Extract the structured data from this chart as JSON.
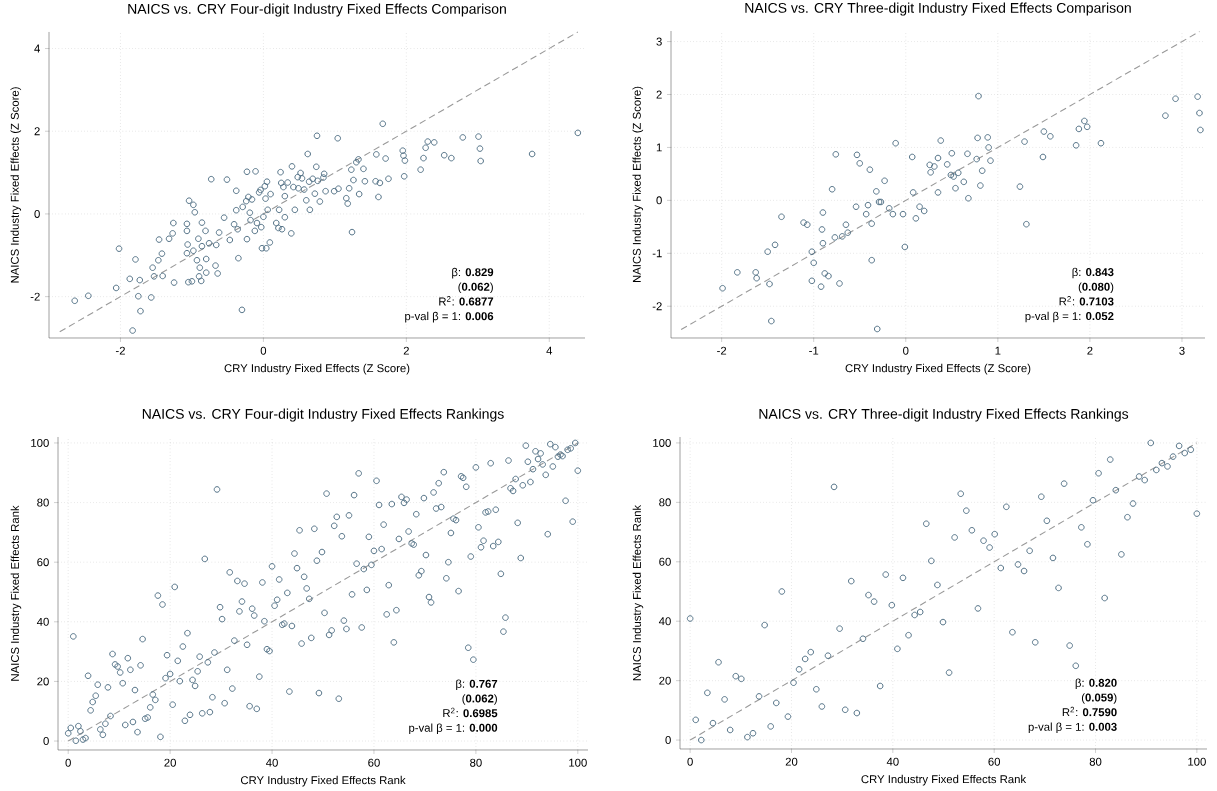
{
  "chart_data": [
    {
      "type": "scatter",
      "title": "NAICS vs. CRY Four-digit Industry Fixed Effects Comparison",
      "xlabel": "CRY Industry Fixed Effects (Z Score)",
      "ylabel": "NAICS Industry Fixed Effects (Z Score)",
      "xlim": [
        -3,
        4.5
      ],
      "ylim": [
        -3,
        4.4
      ],
      "xticks": [
        -2,
        0,
        2,
        4
      ],
      "yticks": [
        -2,
        0,
        2,
        4
      ],
      "grid": true,
      "annotations": [
        "β: **0.829**",
        "(**0.062**)",
        "R$^{2}$:  **0.6877**",
        "p-val β = 1:  **0.006**"
      ],
      "series": [
        {
          "marker": "circle",
          "color": "#4a6a80",
          "x": [
            -2.64,
            -2.45,
            -2.06,
            -2.02,
            -1.87,
            -1.79,
            -1.83,
            -1.73,
            -1.75,
            -1.72,
            -1.57,
            -1.55,
            -1.53,
            -1.46,
            -1.47,
            -1.42,
            -1.41,
            -1.32,
            -1.27,
            -1.26,
            -1.25,
            -1.07,
            -1.07,
            -1.06,
            -1.07,
            -1.05,
            -1.04,
            -1.0,
            -0.98,
            -0.98,
            -0.96,
            -0.93,
            -0.9,
            -0.91,
            -0.89,
            -0.87,
            -0.86,
            -0.86,
            -0.81,
            -0.8,
            -0.8,
            -0.76,
            -0.73,
            -0.67,
            -0.66,
            -0.64,
            -0.62,
            -0.55,
            -0.51,
            -0.47,
            -0.41,
            -0.38,
            -0.38,
            -0.36,
            -0.35,
            -0.3,
            -0.29,
            -0.23,
            -0.24,
            -0.23,
            -0.21,
            -0.19,
            -0.18,
            -0.16,
            -0.11,
            -0.12,
            -0.09,
            -0.06,
            -0.04,
            -0.03,
            -0.02,
            0.0,
            0.02,
            0.03,
            0.04,
            0.05,
            0.06,
            0.09,
            0.1,
            0.18,
            0.21,
            0.22,
            0.24,
            0.25,
            0.26,
            0.28,
            0.3,
            0.3,
            0.34,
            0.4,
            0.39,
            0.42,
            0.44,
            0.48,
            0.49,
            0.52,
            0.54,
            0.57,
            0.6,
            0.62,
            0.64,
            0.65,
            0.69,
            0.72,
            0.74,
            0.75,
            0.76,
            0.79,
            0.84,
            0.85,
            0.87,
            0.99,
            1.04,
            1.05,
            1.16,
            1.18,
            1.2,
            1.23,
            1.24,
            1.26,
            1.3,
            1.33,
            1.34,
            1.4,
            1.42,
            1.58,
            1.57,
            1.61,
            1.63,
            1.67,
            1.71,
            1.75,
            1.95,
            1.96,
            1.98,
            1.97,
            2.2,
            2.24,
            2.27,
            2.3,
            2.39,
            2.53,
            2.63,
            2.79,
            3.01,
            3.03,
            3.04,
            3.76,
            4.4
          ],
          "values": [
            -2.1,
            -1.98,
            -1.79,
            -0.84,
            -1.57,
            -1.1,
            -2.82,
            -1.6,
            -1.99,
            -2.35,
            -2.02,
            -1.3,
            -1.51,
            -0.62,
            -1.12,
            -0.96,
            -1.5,
            -0.6,
            -0.47,
            -0.22,
            -1.66,
            -0.24,
            -0.41,
            -0.74,
            -0.95,
            -1.65,
            0.32,
            -1.63,
            -0.89,
            0.22,
            0.04,
            -1.12,
            -1.51,
            -0.6,
            -1.3,
            -1.62,
            -0.21,
            -0.78,
            -0.41,
            -1.09,
            -1.42,
            -0.71,
            0.84,
            -1.25,
            -0.75,
            -1.44,
            -0.45,
            -0.09,
            0.83,
            -0.63,
            -0.25,
            0.09,
            0.56,
            -0.37,
            -1.07,
            -2.32,
            0.17,
            1.02,
            0.31,
            -0.61,
            0.41,
            0.03,
            -0.15,
            0.35,
            1.03,
            -0.41,
            -0.22,
            0.52,
            0.58,
            -0.32,
            -0.83,
            -0.07,
            0.67,
            0.37,
            -0.83,
            0.78,
            0.1,
            -0.69,
            0.48,
            -0.22,
            -0.34,
            0.1,
            1.01,
            0.75,
            -0.37,
            0.65,
            -0.08,
            0.43,
            0.76,
            1.15,
            -0.47,
            0.65,
            0.1,
            0.89,
            0.62,
            0.99,
            0.86,
            0.59,
            0.33,
            1.45,
            0.78,
            0.1,
            0.85,
            0.49,
            1.14,
            1.89,
            0.8,
            0.3,
            0.88,
            0.97,
            0.55,
            0.55,
            1.83,
            0.61,
            0.38,
            0.25,
            0.62,
            1.07,
            -0.44,
            0.82,
            1.25,
            1.32,
            0.48,
            1.09,
            0.79,
            1.44,
            0.79,
            0.41,
            0.75,
            2.18,
            1.34,
            0.85,
            1.53,
            1.41,
            1.29,
            0.91,
            1.07,
            1.35,
            1.6,
            1.75,
            1.73,
            1.42,
            1.35,
            1.85,
            1.87,
            1.58,
            1.28,
            1.45,
            1.96
          ]
        },
        {
          "type": "line",
          "line_style": "dashed",
          "color": "#999999",
          "x": [
            -2.85,
            4.4
          ],
          "values": [
            -2.85,
            4.4
          ]
        }
      ]
    },
    {
      "type": "scatter",
      "title": "NAICS vs. CRY Three-digit Industry Fixed Effects Comparison",
      "xlabel": "CRY Industry Fixed Effects (Z Score)",
      "ylabel": "NAICS Industry Fixed Effects (Z Score)",
      "xlim": [
        -2.55,
        3.25
      ],
      "ylim": [
        -2.6,
        3.2
      ],
      "xticks": [
        -2,
        -1,
        0,
        1,
        2,
        3
      ],
      "yticks": [
        -2,
        -1,
        0,
        1,
        2,
        3
      ],
      "grid": true,
      "annotations": [
        "β: **0.843**",
        "(**0.080**)",
        "R$^{2}$:  **0.7103**",
        "p-val β = 1:  **0.052**"
      ],
      "series": [
        {
          "marker": "circle",
          "color": "#4a6a80",
          "x": [
            -1.99,
            -1.83,
            -1.63,
            -1.62,
            -1.5,
            -1.48,
            -1.46,
            -1.42,
            -1.35,
            -1.11,
            -1.07,
            -1.02,
            -1.02,
            -1.0,
            -0.92,
            -0.91,
            -0.9,
            -0.9,
            -0.88,
            -0.84,
            -0.8,
            -0.77,
            -0.76,
            -0.72,
            -0.69,
            -0.65,
            -0.63,
            -0.54,
            -0.53,
            -0.5,
            -0.43,
            -0.41,
            -0.39,
            -0.37,
            -0.37,
            -0.32,
            -0.31,
            -0.29,
            -0.27,
            -0.23,
            -0.18,
            -0.14,
            -0.11,
            -0.03,
            -0.01,
            0.07,
            0.08,
            0.11,
            0.15,
            0.2,
            0.26,
            0.27,
            0.31,
            0.35,
            0.35,
            0.38,
            0.45,
            0.49,
            0.5,
            0.52,
            0.54,
            0.57,
            0.63,
            0.67,
            0.68,
            0.77,
            0.78,
            0.79,
            0.81,
            0.83,
            0.89,
            0.9,
            0.92,
            1.24,
            1.29,
            1.31,
            1.49,
            1.5,
            1.57,
            1.85,
            1.88,
            1.94,
            1.97,
            2.12,
            2.82,
            2.93,
            3.17,
            3.19,
            3.2
          ],
          "values": [
            -1.66,
            -1.36,
            -1.36,
            -1.47,
            -0.97,
            -1.58,
            -2.28,
            -0.84,
            -0.31,
            -0.42,
            -0.46,
            -0.97,
            -1.52,
            -1.18,
            -1.63,
            -0.55,
            -0.23,
            -0.81,
            -1.38,
            -1.43,
            0.21,
            -0.7,
            0.87,
            -1.57,
            -0.68,
            -0.46,
            -0.61,
            -0.12,
            0.86,
            0.7,
            -0.26,
            -0.09,
            0.58,
            -0.44,
            -1.13,
            0.17,
            -2.43,
            -0.03,
            -0.03,
            0.37,
            -0.15,
            -0.26,
            1.08,
            -0.26,
            -0.88,
            0.82,
            0.15,
            -0.34,
            -0.12,
            -0.2,
            0.67,
            0.53,
            0.64,
            0.8,
            0.15,
            1.13,
            0.68,
            0.48,
            0.89,
            0.45,
            0.23,
            0.52,
            0.35,
            0.88,
            0.04,
            0.78,
            1.18,
            1.97,
            0.28,
            0.56,
            1.19,
            1.0,
            0.75,
            0.26,
            1.11,
            -0.45,
            0.82,
            1.3,
            1.21,
            1.04,
            1.35,
            1.5,
            1.39,
            1.08,
            1.6,
            1.92,
            1.96,
            1.65,
            1.33
          ]
        },
        {
          "type": "line",
          "line_style": "dashed",
          "color": "#999999",
          "x": [
            -2.44,
            3.19
          ],
          "values": [
            -2.44,
            3.19
          ]
        }
      ]
    },
    {
      "type": "scatter",
      "title": "NAICS vs. CRY Four-digit Industry Fixed Effects Rankings",
      "xlabel": "CRY Industry Fixed Effects Rank",
      "ylabel": "NAICS Industry Fixed Effects Rank",
      "xlim": [
        -2,
        102
      ],
      "ylim": [
        -3,
        102
      ],
      "xticks": [
        0,
        20,
        40,
        60,
        80,
        100
      ],
      "yticks": [
        0,
        20,
        40,
        60,
        80,
        100
      ],
      "grid": true,
      "annotations": [
        "β: **0.767**",
        "(**0.062**)",
        "R$^{2}$:  **0.6985**",
        "p-val β = 1:  **0.000**"
      ],
      "series": [
        {
          "marker": "circle",
          "color": "#4a6a80",
          "x": [
            0,
            0.5,
            1.0,
            1.5,
            2.0,
            2.4,
            2.9,
            3.4,
            3.9,
            4.4,
            4.8,
            5.4,
            5.8,
            6.3,
            6.8,
            7.3,
            7.8,
            8.3,
            8.7,
            9.2,
            9.7,
            10.2,
            10.7,
            11.2,
            11.7,
            12.2,
            12.7,
            13.1,
            13.6,
            14.2,
            14.6,
            15.1,
            15.6,
            16.1,
            16.6,
            17.1,
            17.6,
            18.1,
            18.5,
            19.1,
            19.4,
            20.0,
            20.5,
            20.9,
            21.5,
            21.9,
            22.5,
            22.9,
            23.4,
            23.9,
            24.4,
            24.9,
            25.4,
            25.8,
            26.3,
            26.8,
            27.4,
            27.8,
            28.3,
            28.7,
            29.2,
            29.8,
            30.2,
            30.7,
            31.2,
            31.7,
            32.2,
            32.6,
            33.2,
            33.6,
            34.1,
            34.6,
            35.1,
            35.6,
            36.1,
            36.5,
            37.0,
            37.5,
            38.1,
            38.5,
            39.0,
            39.5,
            40.0,
            40.5,
            41.0,
            41.4,
            42.0,
            42.4,
            43.0,
            43.4,
            43.9,
            44.4,
            44.9,
            45.4,
            45.8,
            46.3,
            46.8,
            47.3,
            47.7,
            48.3,
            48.8,
            49.2,
            49.8,
            50.3,
            50.7,
            51.2,
            51.7,
            52.2,
            52.7,
            53.1,
            53.7,
            54.1,
            54.6,
            55.1,
            55.7,
            56.1,
            56.6,
            57.0,
            57.6,
            58.0,
            58.6,
            59.0,
            59.5,
            60.0,
            60.5,
            61.0,
            61.5,
            61.9,
            62.5,
            62.9,
            63.5,
            63.9,
            64.4,
            64.9,
            65.4,
            65.9,
            66.4,
            66.8,
            67.4,
            67.8,
            68.3,
            68.8,
            69.3,
            69.8,
            70.2,
            70.8,
            71.2,
            71.7,
            72.2,
            72.7,
            73.2,
            73.7,
            74.2,
            74.6,
            75.1,
            75.6,
            76.1,
            76.6,
            77.1,
            77.5,
            78.1,
            78.5,
            79.0,
            79.5,
            80.0,
            80.5,
            81.0,
            81.5,
            81.9,
            82.4,
            82.9,
            83.4,
            83.9,
            84.4,
            84.9,
            85.4,
            85.8,
            86.4,
            86.8,
            87.3,
            87.8,
            88.2,
            88.8,
            89.2,
            89.8,
            90.2,
            90.7,
            91.2,
            91.7,
            92.2,
            92.7,
            93.1,
            93.7,
            94.1,
            94.6,
            95.1,
            95.6,
            96.1,
            96.6,
            97.0,
            97.6,
            98.0,
            98.6,
            99.0,
            99.5,
            100
          ],
          "values": [
            2.6,
            4.4,
            35.1,
            0.1,
            5.0,
            3.3,
            0.5,
            1.0,
            21.9,
            10.3,
            13.1,
            15.2,
            18.9,
            3.9,
            2.1,
            5.8,
            18.0,
            8.4,
            29.2,
            25.7,
            25.0,
            23.0,
            19.4,
            5.4,
            27.8,
            23.9,
            6.4,
            17.1,
            3.0,
            25.4,
            34.2,
            7.5,
            7.9,
            11.3,
            15.6,
            13.8,
            48.8,
            1.4,
            45.8,
            21.1,
            28.8,
            22.5,
            12.2,
            51.7,
            26.9,
            20.1,
            31.7,
            6.8,
            36.2,
            8.8,
            20.5,
            18.5,
            23.4,
            28.3,
            9.3,
            61.1,
            26.4,
            9.7,
            14.7,
            29.7,
            84.4,
            44.9,
            40.9,
            12.7,
            23.9,
            56.6,
            17.6,
            33.7,
            53.7,
            43.5,
            46.8,
            52.8,
            32.3,
            11.7,
            44.4,
            42.1,
            10.8,
            21.6,
            53.2,
            40.2,
            30.8,
            30.2,
            58.6,
            45.4,
            47.4,
            54.2,
            39.0,
            39.4,
            49.7,
            16.6,
            38.6,
            62.9,
            58.0,
            70.7,
            32.7,
            55.1,
            51.2,
            47.7,
            34.6,
            71.2,
            60.5,
            16.1,
            63.4,
            43.0,
            83.0,
            35.6,
            37.1,
            72.2,
            75.2,
            14.2,
            68.7,
            40.4,
            37.6,
            75.7,
            49.2,
            82.5,
            59.5,
            89.8,
            38.1,
            57.7,
            50.7,
            68.5,
            59.1,
            63.8,
            87.3,
            79.2,
            64.4,
            72.6,
            42.5,
            52.3,
            79.5,
            33.1,
            43.9,
            67.8,
            81.9,
            79.9,
            81.0,
            70.3,
            66.3,
            65.9,
            76.1,
            55.6,
            57.0,
            81.5,
            62.4,
            48.3,
            46.5,
            83.4,
            78.0,
            86.5,
            78.5,
            90.2,
            54.6,
            60.0,
            69.8,
            74.6,
            74.1,
            50.3,
            88.8,
            88.3,
            85.3,
            31.3,
            61.9,
            27.3,
            91.8,
            71.7,
            65.0,
            67.2,
            76.7,
            77.0,
            93.2,
            65.4,
            77.6,
            66.8,
            56.1,
            36.7,
            41.4,
            94.1,
            84.8,
            83.9,
            87.9,
            73.2,
            61.4,
            85.8,
            99.1,
            93.7,
            86.9,
            91.2,
            97.2,
            94.6,
            96.5,
            92.8,
            89.3,
            69.4,
            99.6,
            92.1,
            98.6,
            95.4,
            96.1,
            95.6,
            80.6,
            97.7,
            98.2,
            73.6,
            100,
            90.7
          ]
        },
        {
          "type": "line",
          "line_style": "dashed",
          "color": "#999999",
          "x": [
            0,
            100
          ],
          "values": [
            0,
            100
          ]
        }
      ]
    },
    {
      "type": "scatter",
      "title": "NAICS vs. CRY Three-digit Industry Fixed Effects Rankings",
      "xlabel": "CRY Industry Fixed Effects Rank",
      "ylabel": "NAICS Industry Fixed Effects Rank",
      "xlim": [
        -2,
        102
      ],
      "ylim": [
        -3,
        102
      ],
      "xticks": [
        0,
        20,
        40,
        60,
        80,
        100
      ],
      "yticks": [
        0,
        20,
        40,
        60,
        80,
        100
      ],
      "grid": true,
      "annotations": [
        "β: **0.820**",
        "(**0.059**)",
        "R$^{2}$:  **0.7590**",
        "p-val β = 1:  **0.003**"
      ],
      "series": [
        {
          "marker": "circle",
          "color": "#4a6a80",
          "x": [
            0,
            1.1,
            2.2,
            3.4,
            4.5,
            5.6,
            6.8,
            7.9,
            9.0,
            10.1,
            11.3,
            12.4,
            13.6,
            14.7,
            15.9,
            17.0,
            18.1,
            19.3,
            20.4,
            21.5,
            22.7,
            23.8,
            24.9,
            26.0,
            27.2,
            28.4,
            29.5,
            30.6,
            31.8,
            32.9,
            34.1,
            35.2,
            36.3,
            37.5,
            38.6,
            39.8,
            40.9,
            42.0,
            43.1,
            44.3,
            45.4,
            46.6,
            47.6,
            48.8,
            49.9,
            51.1,
            52.2,
            53.4,
            54.5,
            55.6,
            56.8,
            57.9,
            59.1,
            60.1,
            61.3,
            62.4,
            63.6,
            64.7,
            65.9,
            67.0,
            68.1,
            69.3,
            70.4,
            71.6,
            72.7,
            73.8,
            74.9,
            76.1,
            77.2,
            78.4,
            79.5,
            80.6,
            81.8,
            82.9,
            84.0,
            85.1,
            86.3,
            87.4,
            88.6,
            89.7,
            90.9,
            92.0,
            93.1,
            94.2,
            95.3,
            96.5,
            97.6,
            98.8,
            100
          ],
          "values": [
            40.9,
            6.8,
            0,
            15.9,
            5.7,
            26.2,
            13.7,
            3.4,
            21.5,
            20.6,
            1.0,
            2.3,
            14.7,
            38.7,
            4.6,
            12.5,
            50.0,
            7.9,
            19.3,
            23.8,
            27.3,
            29.6,
            17.1,
            11.3,
            28.4,
            85.2,
            37.5,
            10.2,
            53.5,
            9.1,
            34.1,
            48.8,
            46.6,
            18.2,
            55.7,
            45.4,
            30.7,
            54.6,
            35.3,
            42.1,
            43.1,
            72.8,
            60.3,
            52.2,
            39.7,
            22.7,
            68.2,
            82.9,
            77.2,
            70.6,
            44.3,
            67.1,
            64.8,
            69.3,
            57.9,
            78.5,
            36.3,
            59.1,
            56.9,
            63.7,
            32.9,
            81.9,
            73.8,
            61.3,
            51.2,
            86.3,
            31.8,
            25.0,
            71.6,
            65.9,
            80.7,
            89.8,
            47.8,
            94.4,
            84.1,
            62.5,
            75.0,
            79.6,
            88.7,
            87.5,
            100,
            90.9,
            93.2,
            92.1,
            95.4,
            99.0,
            96.6,
            97.7,
            76.2
          ]
        },
        {
          "type": "line",
          "line_style": "dashed",
          "color": "#999999",
          "x": [
            0,
            100
          ],
          "values": [
            0,
            100
          ]
        }
      ]
    }
  ]
}
